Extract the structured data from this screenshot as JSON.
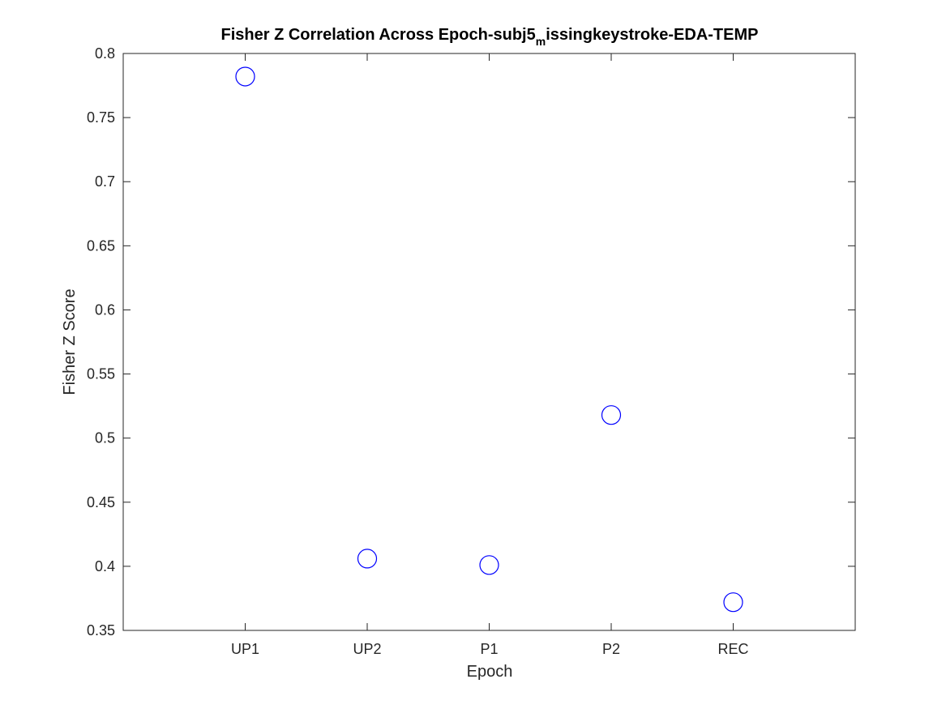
{
  "title": {
    "main": "Fisher Z Correlation Across Epoch-subj5",
    "subscript": "m",
    "rest": "issingkeystroke-EDA-TEMP"
  },
  "chart_data": {
    "type": "scatter",
    "title": "Fisher Z Correlation Across Epoch-subj5_missingkeystroke-EDA-TEMP",
    "xlabel": "Epoch",
    "ylabel": "Fisher Z Score",
    "categories": [
      "UP1",
      "UP2",
      "P1",
      "P2",
      "REC"
    ],
    "values": [
      0.782,
      0.406,
      0.401,
      0.518,
      0.372
    ],
    "ylim": [
      0.35,
      0.8
    ],
    "yticks": [
      0.35,
      0.4,
      0.45,
      0.5,
      0.55,
      0.6,
      0.65,
      0.7,
      0.75,
      0.8
    ],
    "ytick_labels": [
      "0.35",
      "0.4",
      "0.45",
      "0.5",
      "0.55",
      "0.6",
      "0.65",
      "0.7",
      "0.75",
      "0.8"
    ],
    "xlim": [
      0,
      6
    ],
    "marker": "circle-open",
    "marker_color": "#0000ff",
    "grid": false,
    "legend": "none"
  }
}
